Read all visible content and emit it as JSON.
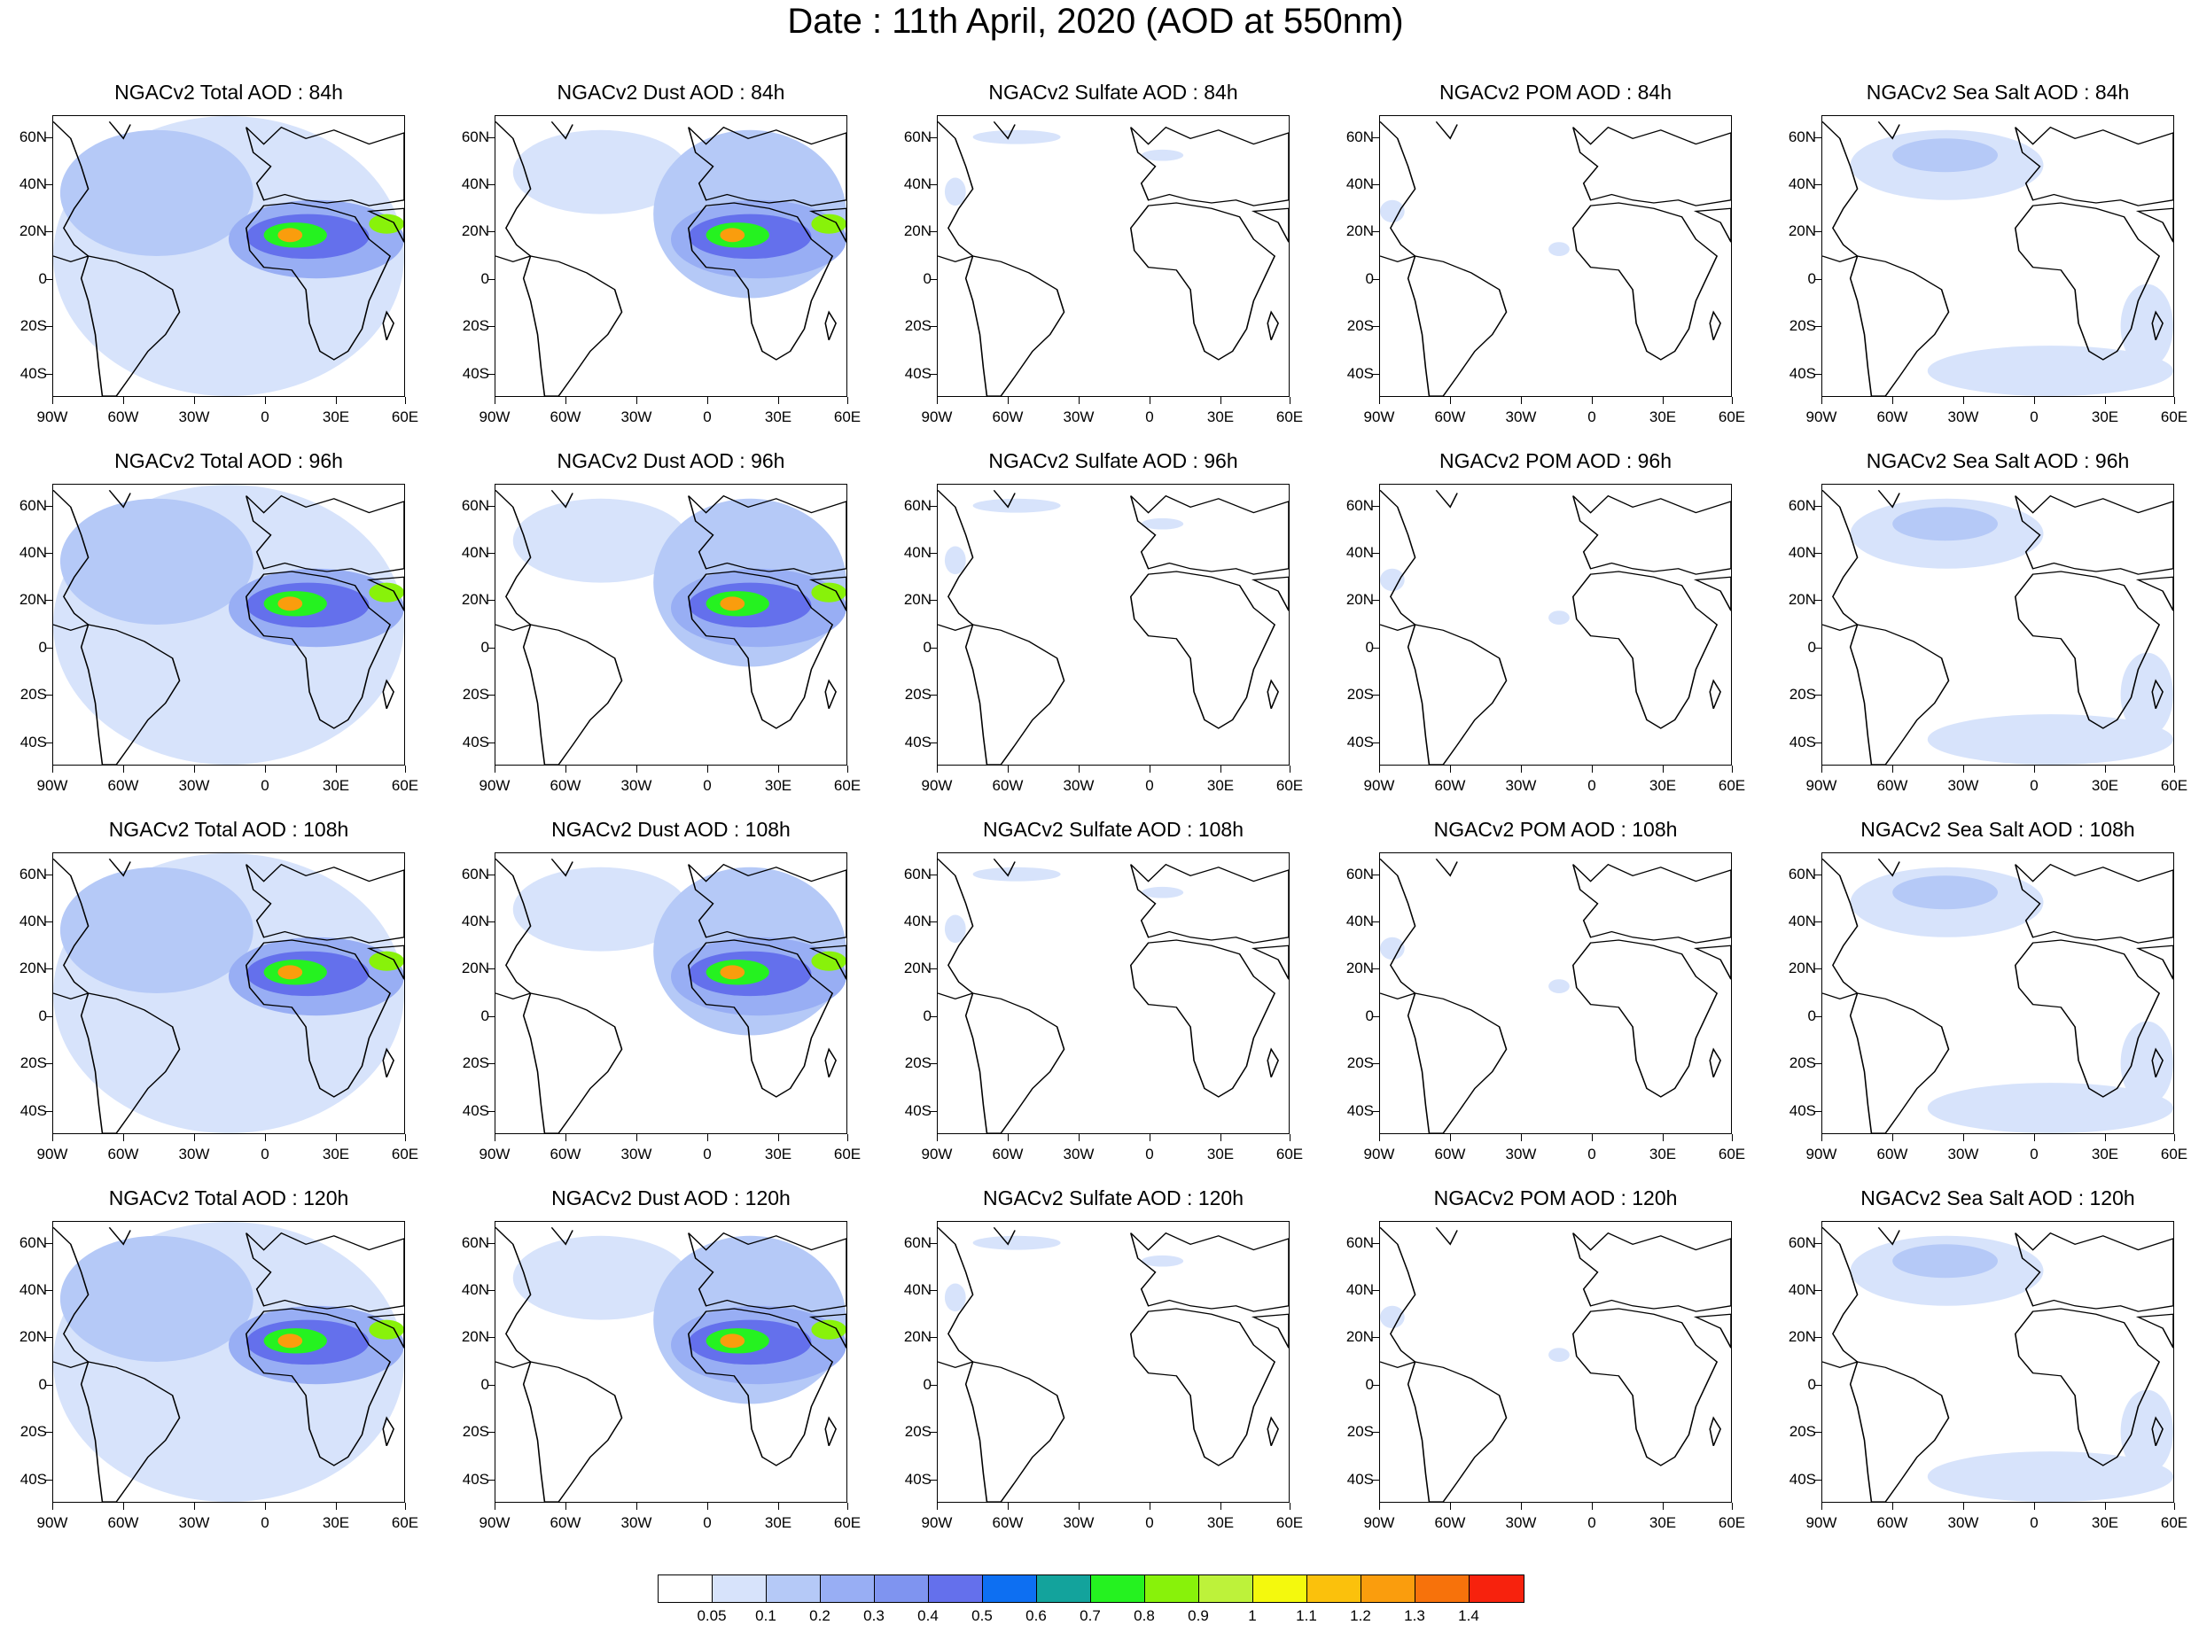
{
  "title": "Date : 11th April, 2020 (AOD at 550nm)",
  "axes": {
    "lat_labels": [
      "60N",
      "40N",
      "20N",
      "0",
      "20S",
      "40S"
    ],
    "lon_labels": [
      "90W",
      "60W",
      "30W",
      "0",
      "30E",
      "60E"
    ]
  },
  "panels": [
    [
      "NGACv2 Total AOD : 84h",
      "NGACv2 Dust AOD : 84h",
      "NGACv2 Sulfate AOD : 84h",
      "NGACv2 POM AOD : 84h",
      "NGACv2 Sea Salt AOD : 84h"
    ],
    [
      "NGACv2 Total AOD : 96h",
      "NGACv2 Dust AOD : 96h",
      "NGACv2 Sulfate AOD : 96h",
      "NGACv2 POM AOD : 96h",
      "NGACv2 Sea Salt AOD : 96h"
    ],
    [
      "NGACv2 Total AOD : 108h",
      "NGACv2 Dust AOD : 108h",
      "NGACv2 Sulfate AOD : 108h",
      "NGACv2 POM AOD : 108h",
      "NGACv2 Sea Salt AOD : 108h"
    ],
    [
      "NGACv2 Total AOD : 120h",
      "NGACv2 Dust AOD : 120h",
      "NGACv2 Sulfate AOD : 120h",
      "NGACv2 POM AOD : 120h",
      "NGACv2 Sea Salt  AOD : 120h"
    ]
  ],
  "colorbar": {
    "labels": [
      "0.05",
      "0.1",
      "0.2",
      "0.3",
      "0.4",
      "0.5",
      "0.6",
      "0.7",
      "0.8",
      "0.9",
      "1",
      "1.1",
      "1.2",
      "1.3",
      "1.4"
    ],
    "colors": [
      "#ffffff",
      "#d7e3fb",
      "#b5c9f7",
      "#98aef4",
      "#7f94f0",
      "#6470ec",
      "#0d6ff2",
      "#13a39c",
      "#25f220",
      "#88f20a",
      "#bdf23a",
      "#f4f90d",
      "#fbc10c",
      "#fa9d0d",
      "#f7720b",
      "#f7220d"
    ]
  }
}
